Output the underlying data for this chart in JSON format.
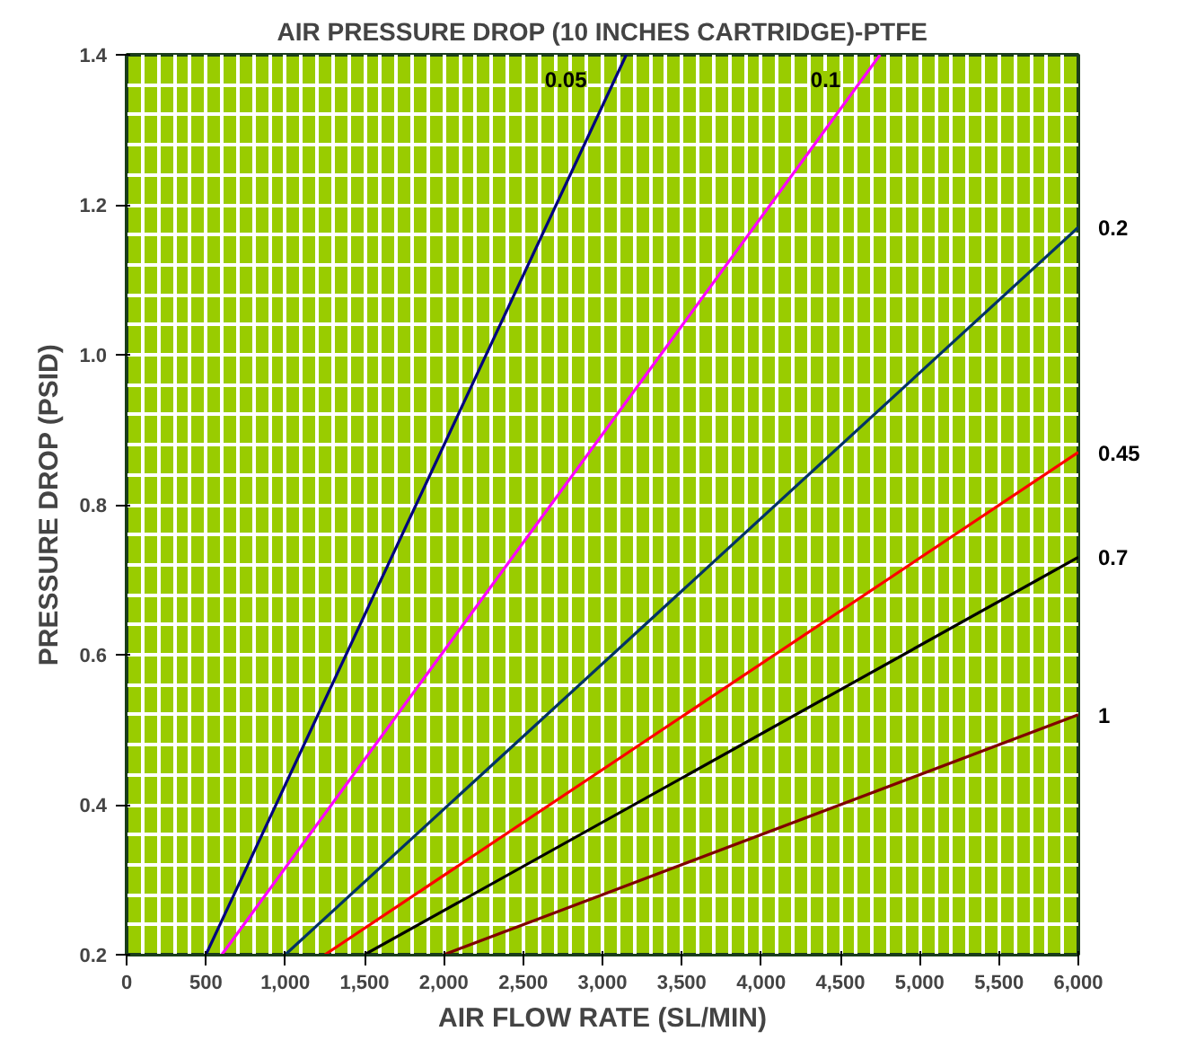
{
  "chart_data": {
    "type": "line",
    "title": "AIR PRESSURE DROP (10 INCHES CARTRIDGE)-PTFE",
    "xlabel": "AIR FLOW RATE (SL/MIN)",
    "ylabel": "PRESSURE DROP (PSID)",
    "xlim": [
      0,
      6000
    ],
    "ylim": [
      0.2,
      1.4
    ],
    "xticks": [
      {
        "value": 0,
        "label": "0"
      },
      {
        "value": 100,
        "label": null
      },
      {
        "value": 200,
        "label": null
      },
      {
        "value": 300,
        "label": null
      },
      {
        "value": 400,
        "label": null
      },
      {
        "value": 500,
        "label": "500"
      },
      {
        "value": 600,
        "label": null
      },
      {
        "value": 700,
        "label": null
      },
      {
        "value": 800,
        "label": null
      },
      {
        "value": 900,
        "label": null
      },
      {
        "value": 1000,
        "label": "1,000"
      },
      {
        "value": 1100,
        "label": null
      },
      {
        "value": 1200,
        "label": null
      },
      {
        "value": 1300,
        "label": null
      },
      {
        "value": 1400,
        "label": null
      },
      {
        "value": 1500,
        "label": "1,500"
      },
      {
        "value": 1600,
        "label": null
      },
      {
        "value": 1700,
        "label": null
      },
      {
        "value": 1800,
        "label": null
      },
      {
        "value": 1900,
        "label": null
      },
      {
        "value": 2000,
        "label": "2,000"
      },
      {
        "value": 2100,
        "label": null
      },
      {
        "value": 2200,
        "label": null
      },
      {
        "value": 2300,
        "label": null
      },
      {
        "value": 2400,
        "label": null
      },
      {
        "value": 2500,
        "label": "2,500"
      },
      {
        "value": 2600,
        "label": null
      },
      {
        "value": 2700,
        "label": null
      },
      {
        "value": 2800,
        "label": null
      },
      {
        "value": 2900,
        "label": null
      },
      {
        "value": 3000,
        "label": "3,000"
      },
      {
        "value": 3100,
        "label": null
      },
      {
        "value": 3200,
        "label": null
      },
      {
        "value": 3300,
        "label": null
      },
      {
        "value": 3400,
        "label": null
      },
      {
        "value": 3500,
        "label": "3,500"
      },
      {
        "value": 3600,
        "label": null
      },
      {
        "value": 3700,
        "label": null
      },
      {
        "value": 3800,
        "label": null
      },
      {
        "value": 3900,
        "label": null
      },
      {
        "value": 4000,
        "label": "4,000"
      },
      {
        "value": 4100,
        "label": null
      },
      {
        "value": 4200,
        "label": null
      },
      {
        "value": 4300,
        "label": null
      },
      {
        "value": 4400,
        "label": null
      },
      {
        "value": 4500,
        "label": "4,500"
      },
      {
        "value": 4600,
        "label": null
      },
      {
        "value": 4700,
        "label": null
      },
      {
        "value": 4800,
        "label": null
      },
      {
        "value": 4900,
        "label": null
      },
      {
        "value": 5000,
        "label": "5,000"
      },
      {
        "value": 5100,
        "label": null
      },
      {
        "value": 5200,
        "label": null
      },
      {
        "value": 5300,
        "label": null
      },
      {
        "value": 5400,
        "label": null
      },
      {
        "value": 5500,
        "label": "5,500"
      },
      {
        "value": 5600,
        "label": null
      },
      {
        "value": 5700,
        "label": null
      },
      {
        "value": 5800,
        "label": null
      },
      {
        "value": 5900,
        "label": null
      },
      {
        "value": 6000,
        "label": "6,000"
      }
    ],
    "yticks": [
      {
        "value": 0.2,
        "label": "0.2"
      },
      {
        "value": 0.24,
        "label": null
      },
      {
        "value": 0.28,
        "label": null
      },
      {
        "value": 0.32,
        "label": null
      },
      {
        "value": 0.36,
        "label": null
      },
      {
        "value": 0.4,
        "label": "0.4"
      },
      {
        "value": 0.44,
        "label": null
      },
      {
        "value": 0.48,
        "label": null
      },
      {
        "value": 0.52,
        "label": null
      },
      {
        "value": 0.56,
        "label": null
      },
      {
        "value": 0.6,
        "label": "0.6"
      },
      {
        "value": 0.64,
        "label": null
      },
      {
        "value": 0.68,
        "label": null
      },
      {
        "value": 0.72,
        "label": null
      },
      {
        "value": 0.76,
        "label": null
      },
      {
        "value": 0.8,
        "label": "0.8"
      },
      {
        "value": 0.84,
        "label": null
      },
      {
        "value": 0.88,
        "label": null
      },
      {
        "value": 0.92,
        "label": null
      },
      {
        "value": 0.96,
        "label": null
      },
      {
        "value": 1.0,
        "label": "1.0"
      },
      {
        "value": 1.04,
        "label": null
      },
      {
        "value": 1.08,
        "label": null
      },
      {
        "value": 1.12,
        "label": null
      },
      {
        "value": 1.16,
        "label": null
      },
      {
        "value": 1.2,
        "label": "1.2"
      },
      {
        "value": 1.24,
        "label": null
      },
      {
        "value": 1.28,
        "label": null
      },
      {
        "value": 1.32,
        "label": null
      },
      {
        "value": 1.36,
        "label": null
      },
      {
        "value": 1.4,
        "label": "1.4"
      }
    ],
    "grid": true,
    "legend": false,
    "marker": "none",
    "line_style": "solid",
    "series": [
      {
        "name": "0.05",
        "color": "#000080",
        "x": [
          500,
          3150
        ],
        "values": [
          0.2,
          1.4
        ]
      },
      {
        "name": "0.1",
        "color": "#ff00ff",
        "x": [
          600,
          4750
        ],
        "values": [
          0.2,
          1.4
        ]
      },
      {
        "name": "0.2",
        "color": "#003366",
        "x": [
          1000,
          6000
        ],
        "values": [
          0.2,
          1.17
        ]
      },
      {
        "name": "0.45",
        "color": "#ff0000",
        "x": [
          1250,
          6000
        ],
        "values": [
          0.2,
          0.87
        ]
      },
      {
        "name": "0.7",
        "color": "#000000",
        "x": [
          1500,
          6000
        ],
        "values": [
          0.2,
          0.73
        ]
      },
      {
        "name": "1",
        "color": "#800000",
        "x": [
          2000,
          6000
        ],
        "values": [
          0.2,
          0.52
        ]
      }
    ]
  }
}
